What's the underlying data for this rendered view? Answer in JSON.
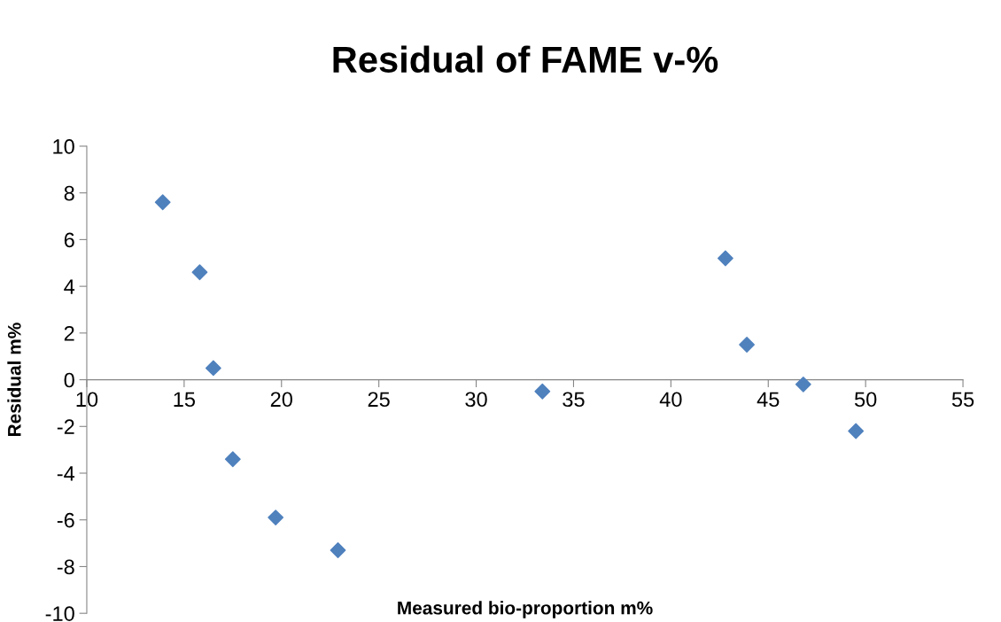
{
  "chart_data": {
    "type": "scatter",
    "title": "Residual of FAME v-%",
    "xlabel": "Measured bio-proportion m%",
    "ylabel": "Residual m%",
    "x": [
      13.9,
      15.8,
      16.5,
      17.5,
      19.7,
      22.9,
      33.4,
      42.8,
      43.9,
      46.8,
      49.5
    ],
    "series": [
      {
        "color": "#4f81bd",
        "values": [
          7.6,
          4.6,
          0.5,
          -3.4,
          -5.9,
          -7.3,
          -0.5,
          5.2,
          1.5,
          -0.2,
          -2.2
        ]
      }
    ],
    "xlim": [
      10,
      55
    ],
    "xticks": [
      10,
      15,
      20,
      25,
      30,
      35,
      40,
      45,
      50,
      55
    ],
    "ylim": [
      -10,
      10
    ],
    "yticks": [
      -10,
      -8,
      -6,
      -4,
      -2,
      0,
      2,
      4,
      6,
      8,
      10
    ],
    "marker": "diamond",
    "grid": false,
    "legend": false
  }
}
